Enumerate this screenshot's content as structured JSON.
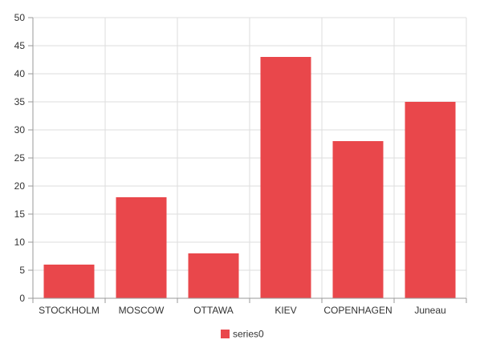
{
  "chart_data": {
    "type": "bar",
    "categories": [
      "STOCKHOLM",
      "MOSCOW",
      "OTTAWA",
      "KIEV",
      "COPENHAGEN",
      "Juneau"
    ],
    "series": [
      {
        "name": "series0",
        "values": [
          6,
          18,
          8,
          43,
          28,
          35
        ],
        "color": "#e9474b"
      }
    ],
    "ylim": [
      0,
      50
    ],
    "yticks": [
      0,
      5,
      10,
      15,
      20,
      25,
      30,
      35,
      40,
      45,
      50
    ],
    "grid": true,
    "legend": "bottom-center"
  }
}
